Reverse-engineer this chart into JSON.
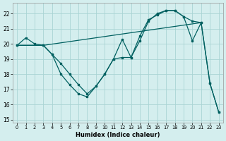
{
  "xlabel": "Humidex (Indice chaleur)",
  "bg_color": "#d4eeee",
  "line_color": "#006060",
  "grid_color": "#aad4d4",
  "xlim": [
    -0.5,
    23.5
  ],
  "ylim": [
    14.8,
    22.7
  ],
  "yticks": [
    15,
    16,
    17,
    18,
    19,
    20,
    21,
    22
  ],
  "xticks": [
    0,
    1,
    2,
    3,
    4,
    5,
    6,
    7,
    8,
    9,
    10,
    11,
    12,
    13,
    14,
    15,
    16,
    17,
    18,
    19,
    20,
    21,
    22,
    23
  ],
  "line1_x": [
    0,
    1,
    2,
    3,
    4,
    5,
    6,
    7,
    8,
    9,
    10,
    11,
    12,
    13,
    14,
    15,
    16,
    17,
    18,
    19,
    20,
    21,
    22,
    23
  ],
  "line1_y": [
    19.9,
    20.4,
    20.0,
    19.9,
    19.3,
    18.0,
    17.3,
    16.7,
    16.5,
    17.2,
    18.0,
    19.0,
    20.3,
    19.1,
    20.5,
    21.6,
    21.9,
    22.2,
    22.2,
    21.8,
    20.2,
    21.4,
    17.4,
    15.5
  ],
  "line2_x": [
    0,
    3,
    21
  ],
  "line2_y": [
    19.9,
    19.9,
    21.4
  ],
  "line3_x": [
    0,
    3,
    4,
    5,
    6,
    7,
    8,
    9,
    10,
    11,
    12,
    13,
    14,
    15,
    16,
    17,
    18,
    19,
    20,
    21,
    22,
    23
  ],
  "line3_y": [
    19.9,
    19.9,
    19.3,
    18.7,
    18.0,
    17.3,
    16.7,
    17.2,
    18.0,
    19.0,
    19.1,
    19.1,
    20.2,
    21.5,
    22.0,
    22.2,
    22.2,
    21.8,
    21.5,
    21.4,
    17.4,
    15.5
  ]
}
